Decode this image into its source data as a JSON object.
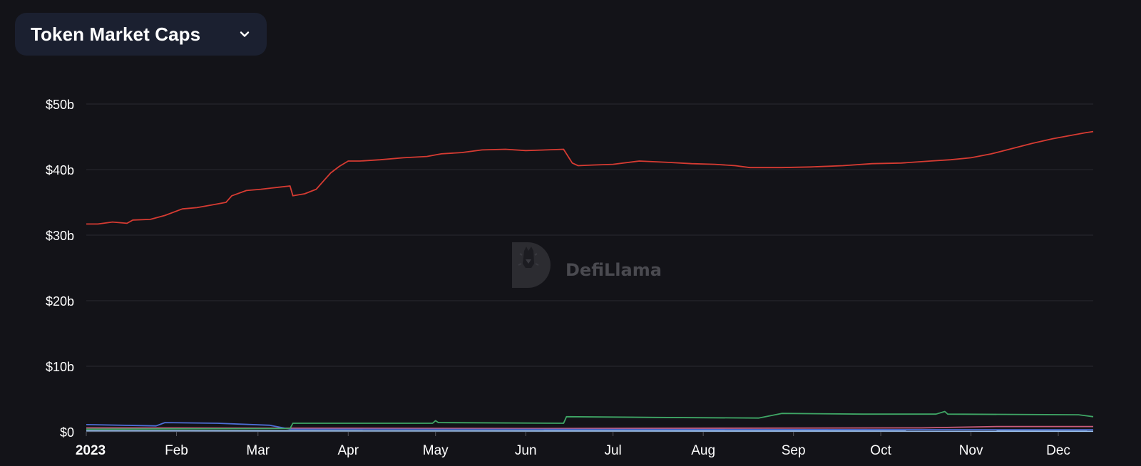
{
  "header": {
    "selector_label": "Token Market Caps",
    "selector_icon": "chevron-down-icon"
  },
  "watermark": {
    "text": "DefiLlama",
    "icon": "llama-logo-icon"
  },
  "colors": {
    "background": "#131318",
    "selector_bg": "#1b2030",
    "grid": "#2a2a30",
    "series_red": "#d63b32",
    "series_green": "#3fa766",
    "series_blue": "#4d6ed6",
    "series_pink": "#c85c7c",
    "series_lightblue": "#9cc3f0"
  },
  "chart_data": {
    "type": "line",
    "xlim": [
      "2023-01-01",
      "2023-12-13"
    ],
    "ylim": [
      0,
      50
    ],
    "y_unit": "billion USD",
    "y_ticks": [
      {
        "value": 0,
        "label": "$0"
      },
      {
        "value": 10,
        "label": "$10b"
      },
      {
        "value": 20,
        "label": "$20b"
      },
      {
        "value": 30,
        "label": "$30b"
      },
      {
        "value": 40,
        "label": "$40b"
      },
      {
        "value": 50,
        "label": "$50b"
      }
    ],
    "x_ticks": [
      {
        "date": "2023-01-01",
        "label": "2023",
        "bold": true
      },
      {
        "date": "2023-02-01",
        "label": "Feb"
      },
      {
        "date": "2023-03-01",
        "label": "Mar"
      },
      {
        "date": "2023-04-01",
        "label": "Apr"
      },
      {
        "date": "2023-05-01",
        "label": "May"
      },
      {
        "date": "2023-06-01",
        "label": "Jun"
      },
      {
        "date": "2023-07-01",
        "label": "Jul"
      },
      {
        "date": "2023-08-01",
        "label": "Aug"
      },
      {
        "date": "2023-09-01",
        "label": "Sep"
      },
      {
        "date": "2023-10-01",
        "label": "Oct"
      },
      {
        "date": "2023-11-01",
        "label": "Nov"
      },
      {
        "date": "2023-12-01",
        "label": "Dec"
      }
    ],
    "grid": true,
    "legend": false,
    "series": [
      {
        "color": "#d63b32",
        "points": [
          [
            "2023-01-01",
            31.7
          ],
          [
            "2023-01-05",
            31.7
          ],
          [
            "2023-01-10",
            32.0
          ],
          [
            "2023-01-15",
            31.8
          ],
          [
            "2023-01-17",
            32.3
          ],
          [
            "2023-01-23",
            32.4
          ],
          [
            "2023-01-28",
            33.0
          ],
          [
            "2023-02-03",
            34.0
          ],
          [
            "2023-02-08",
            34.2
          ],
          [
            "2023-02-13",
            34.6
          ],
          [
            "2023-02-18",
            35.0
          ],
          [
            "2023-02-20",
            36.0
          ],
          [
            "2023-02-25",
            36.8
          ],
          [
            "2023-03-02",
            37.0
          ],
          [
            "2023-03-08",
            37.3
          ],
          [
            "2023-03-12",
            37.5
          ],
          [
            "2023-03-13",
            36.0
          ],
          [
            "2023-03-17",
            36.3
          ],
          [
            "2023-03-21",
            37.0
          ],
          [
            "2023-03-24",
            38.5
          ],
          [
            "2023-03-26",
            39.5
          ],
          [
            "2023-03-29",
            40.5
          ],
          [
            "2023-04-01",
            41.3
          ],
          [
            "2023-04-05",
            41.3
          ],
          [
            "2023-04-12",
            41.5
          ],
          [
            "2023-04-20",
            41.8
          ],
          [
            "2023-04-28",
            42.0
          ],
          [
            "2023-05-03",
            42.4
          ],
          [
            "2023-05-10",
            42.6
          ],
          [
            "2023-05-17",
            43.0
          ],
          [
            "2023-05-25",
            43.1
          ],
          [
            "2023-06-01",
            42.9
          ],
          [
            "2023-06-08",
            43.0
          ],
          [
            "2023-06-14",
            43.1
          ],
          [
            "2023-06-17",
            41.0
          ],
          [
            "2023-06-19",
            40.6
          ],
          [
            "2023-06-24",
            40.7
          ],
          [
            "2023-07-01",
            40.8
          ],
          [
            "2023-07-10",
            41.3
          ],
          [
            "2023-07-20",
            41.1
          ],
          [
            "2023-07-28",
            40.9
          ],
          [
            "2023-08-05",
            40.8
          ],
          [
            "2023-08-12",
            40.6
          ],
          [
            "2023-08-17",
            40.3
          ],
          [
            "2023-08-28",
            40.3
          ],
          [
            "2023-09-07",
            40.4
          ],
          [
            "2023-09-18",
            40.6
          ],
          [
            "2023-09-28",
            40.9
          ],
          [
            "2023-10-08",
            41.0
          ],
          [
            "2023-10-18",
            41.3
          ],
          [
            "2023-10-25",
            41.5
          ],
          [
            "2023-11-01",
            41.8
          ],
          [
            "2023-11-08",
            42.4
          ],
          [
            "2023-11-15",
            43.2
          ],
          [
            "2023-11-22",
            44.0
          ],
          [
            "2023-11-29",
            44.7
          ],
          [
            "2023-12-05",
            45.2
          ],
          [
            "2023-12-10",
            45.6
          ],
          [
            "2023-12-13",
            45.8
          ]
        ]
      },
      {
        "color": "#3fa766",
        "points": [
          [
            "2023-01-01",
            0.4
          ],
          [
            "2023-03-12",
            0.5
          ],
          [
            "2023-03-13",
            1.3
          ],
          [
            "2023-04-30",
            1.3
          ],
          [
            "2023-05-01",
            1.7
          ],
          [
            "2023-05-02",
            1.4
          ],
          [
            "2023-06-14",
            1.3
          ],
          [
            "2023-06-15",
            2.3
          ],
          [
            "2023-07-15",
            2.2
          ],
          [
            "2023-08-20",
            2.1
          ],
          [
            "2023-08-28",
            2.8
          ],
          [
            "2023-09-25",
            2.7
          ],
          [
            "2023-10-20",
            2.7
          ],
          [
            "2023-10-23",
            3.1
          ],
          [
            "2023-10-24",
            2.7
          ],
          [
            "2023-12-08",
            2.6
          ],
          [
            "2023-12-13",
            2.3
          ]
        ]
      },
      {
        "color": "#4d6ed6",
        "points": [
          [
            "2023-01-01",
            1.1
          ],
          [
            "2023-01-25",
            0.9
          ],
          [
            "2023-01-28",
            1.4
          ],
          [
            "2023-02-15",
            1.3
          ],
          [
            "2023-03-05",
            1.0
          ],
          [
            "2023-03-12",
            0.4
          ],
          [
            "2023-12-13",
            0.3
          ]
        ]
      },
      {
        "color": "#c85c7c",
        "points": [
          [
            "2023-01-01",
            0.6
          ],
          [
            "2023-06-01",
            0.5
          ],
          [
            "2023-10-15",
            0.6
          ],
          [
            "2023-11-10",
            0.8
          ],
          [
            "2023-12-13",
            0.8
          ]
        ]
      },
      {
        "color": "#9cc3f0",
        "points": [
          [
            "2023-01-01",
            0.15
          ],
          [
            "2023-12-13",
            0.1
          ]
        ]
      }
    ]
  }
}
